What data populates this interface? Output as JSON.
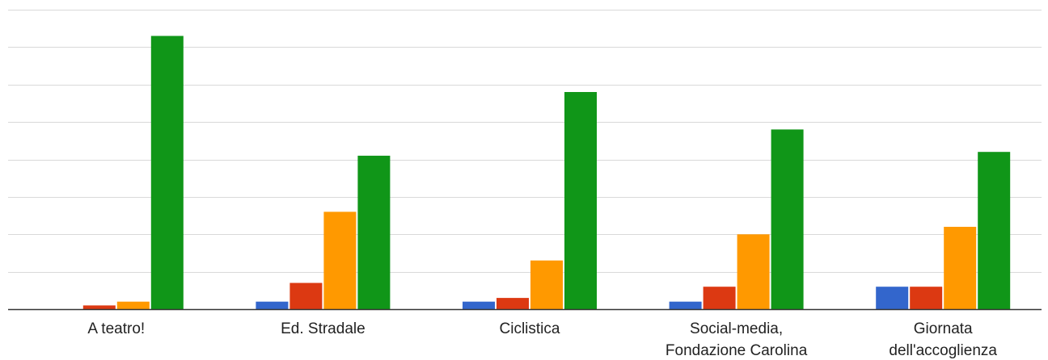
{
  "chart_data": {
    "type": "bar",
    "categories": [
      [
        "A teatro!"
      ],
      [
        "Ed. Stradale"
      ],
      [
        "Ciclistica"
      ],
      [
        "Social-media,",
        "Fondazione Carolina"
      ],
      [
        "Giornata",
        "dell'accoglienza"
      ]
    ],
    "series": [
      {
        "color": "#3366cc",
        "values": [
          0,
          2,
          2,
          2,
          6
        ]
      },
      {
        "color": "#dc3912",
        "values": [
          1,
          7,
          3,
          6,
          6
        ]
      },
      {
        "color": "#ff9900",
        "values": [
          2,
          26,
          13,
          20,
          22
        ]
      },
      {
        "color": "#109618",
        "values": [
          73,
          41,
          58,
          48,
          42
        ]
      }
    ],
    "ylim": [
      0,
      80
    ],
    "grid": true,
    "y_tick_labels_visible": false,
    "legend": "none"
  }
}
